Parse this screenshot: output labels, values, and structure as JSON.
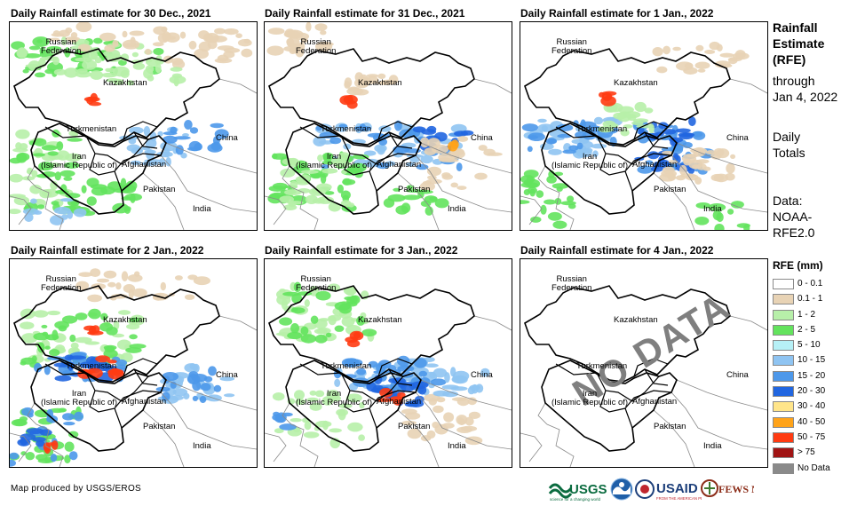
{
  "panels": [
    {
      "title": "Daily Rainfall estimate for 30 Dec., 2021",
      "rain": "p1"
    },
    {
      "title": "Daily Rainfall estimate for 31 Dec., 2021",
      "rain": "p2"
    },
    {
      "title": "Daily Rainfall estimate for 1 Jan., 2022",
      "rain": "p3"
    },
    {
      "title": "Daily Rainfall estimate for 2 Jan., 2022",
      "rain": "p4"
    },
    {
      "title": "Daily Rainfall estimate for 3 Jan., 2022",
      "rain": "p5"
    },
    {
      "title": "Daily Rainfall estimate for 4 Jan., 2022",
      "rain": "none",
      "overlay": "NO DATA"
    }
  ],
  "map_labels": {
    "russia": "Russian\nFederation",
    "kazakhstan": "Kazakhstan",
    "turkmenistan": "Turkmenistan",
    "iran": "Iran\n(Islamic Republic of)",
    "afghanistan": "Afghanistan",
    "pakistan": "Pakistan",
    "india": "India",
    "china": "China"
  },
  "side_text": {
    "heading": "Rainfall\nEstimate\n(RFE)",
    "through": "through\nJan 4, 2022",
    "totals": "Daily\nTotals",
    "data": "Data:\nNOAA-\nRFE2.0"
  },
  "legend": {
    "title": "RFE (mm)",
    "items": [
      {
        "label": "0 - 0.1",
        "color": "#ffffff"
      },
      {
        "label": "0.1 - 1",
        "color": "#e8d3b5"
      },
      {
        "label": "1 - 2",
        "color": "#b7efa9"
      },
      {
        "label": "2 - 5",
        "color": "#63e35d"
      },
      {
        "label": "5 - 10",
        "color": "#b6f0f6"
      },
      {
        "label": "10 - 15",
        "color": "#8fc4f2"
      },
      {
        "label": "15 - 20",
        "color": "#4d98ea"
      },
      {
        "label": "20 - 30",
        "color": "#2166e0"
      },
      {
        "label": "30 - 40",
        "color": "#ffe58a"
      },
      {
        "label": "40 - 50",
        "color": "#ffa319"
      },
      {
        "label": "50 - 75",
        "color": "#ff3b12"
      },
      {
        "label": "> 75",
        "color": "#a11414"
      },
      {
        "label": "No Data",
        "color": "#8a8a8a"
      }
    ]
  },
  "credit": "Map produced by USGS/EROS",
  "logos": {
    "usgs": "USGS",
    "usgs_tagline": "science for a changing world",
    "usaid": "USAID",
    "usaid_tagline": "FROM THE AMERICAN PEOPLE",
    "fews": "FEWS NET"
  }
}
